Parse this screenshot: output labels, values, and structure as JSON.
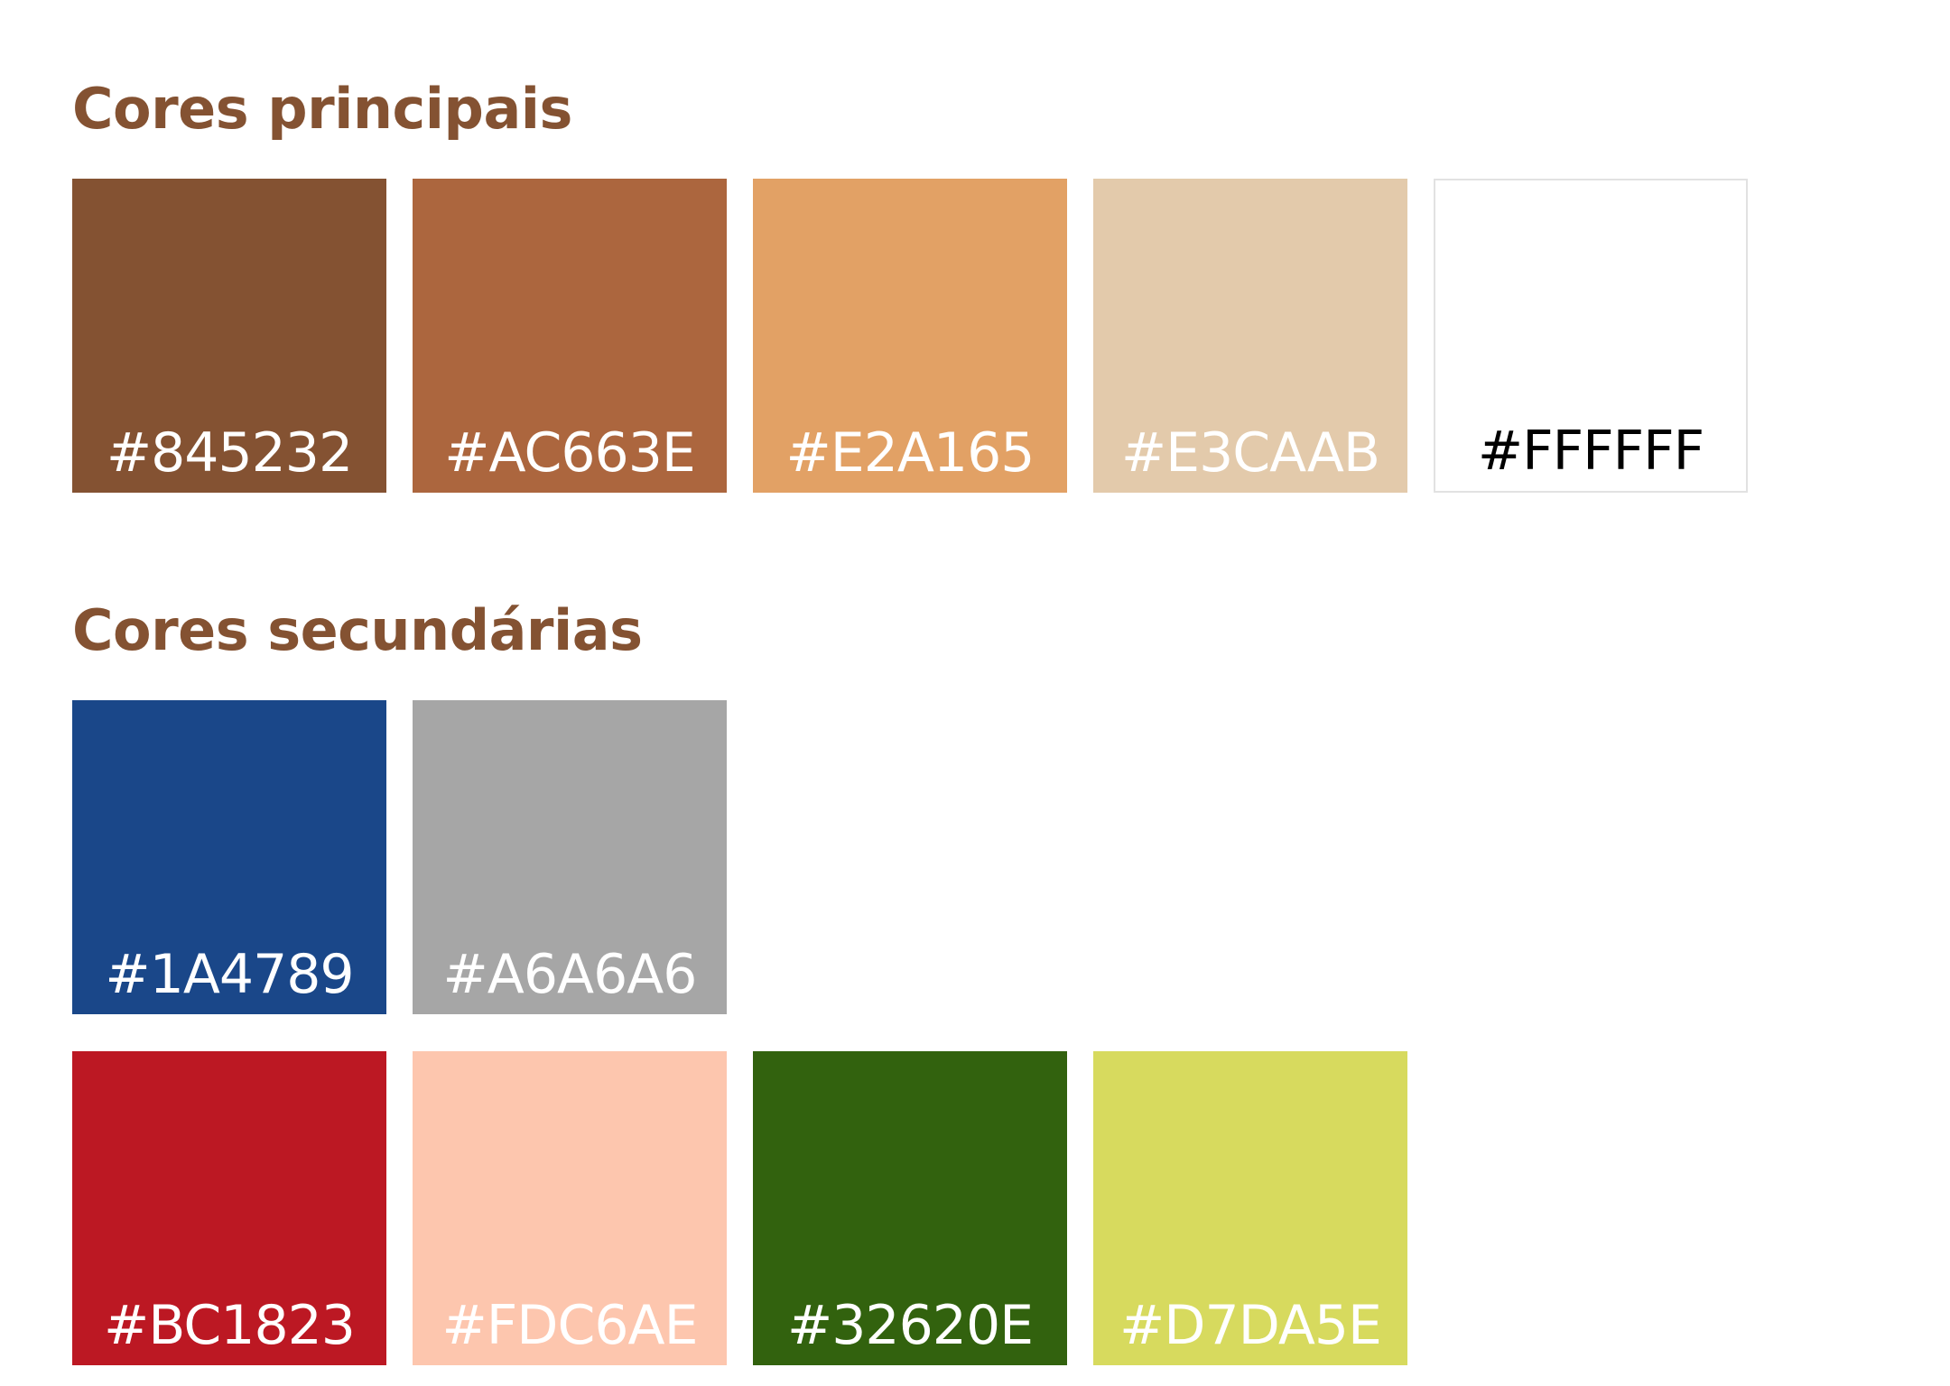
{
  "primary": {
    "title": "Cores principais",
    "swatches": [
      {
        "hex": "#845232",
        "color": "#845232",
        "text_color": "#ffffff"
      },
      {
        "hex": "#AC663E",
        "color": "#AC663E",
        "text_color": "#ffffff"
      },
      {
        "hex": "#E2A165",
        "color": "#E2A165",
        "text_color": "#ffffff"
      },
      {
        "hex": "#E3CAAB",
        "color": "#E3CAAB",
        "text_color": "#ffffff"
      },
      {
        "hex": "#FFFFFF",
        "color": "#FFFFFF",
        "text_color": "#000000"
      }
    ]
  },
  "secondary": {
    "title": "Cores secundárias",
    "row1": [
      {
        "hex": "#1A4789",
        "color": "#1A4789",
        "text_color": "#ffffff"
      },
      {
        "hex": "#A6A6A6",
        "color": "#A6A6A6",
        "text_color": "#ffffff"
      }
    ],
    "row2": [
      {
        "hex": "#BC1823",
        "color": "#BC1823",
        "text_color": "#ffffff"
      },
      {
        "hex": "#FDC6AE",
        "color": "#FDC6AE",
        "text_color": "#ffffff"
      },
      {
        "hex": "#32620E",
        "color": "#32620E",
        "text_color": "#ffffff"
      },
      {
        "hex": "#D7DA5E",
        "color": "#D7DA5E",
        "text_color": "#ffffff"
      }
    ]
  },
  "colors": {
    "heading": "#845232",
    "background": "#ffffff"
  }
}
